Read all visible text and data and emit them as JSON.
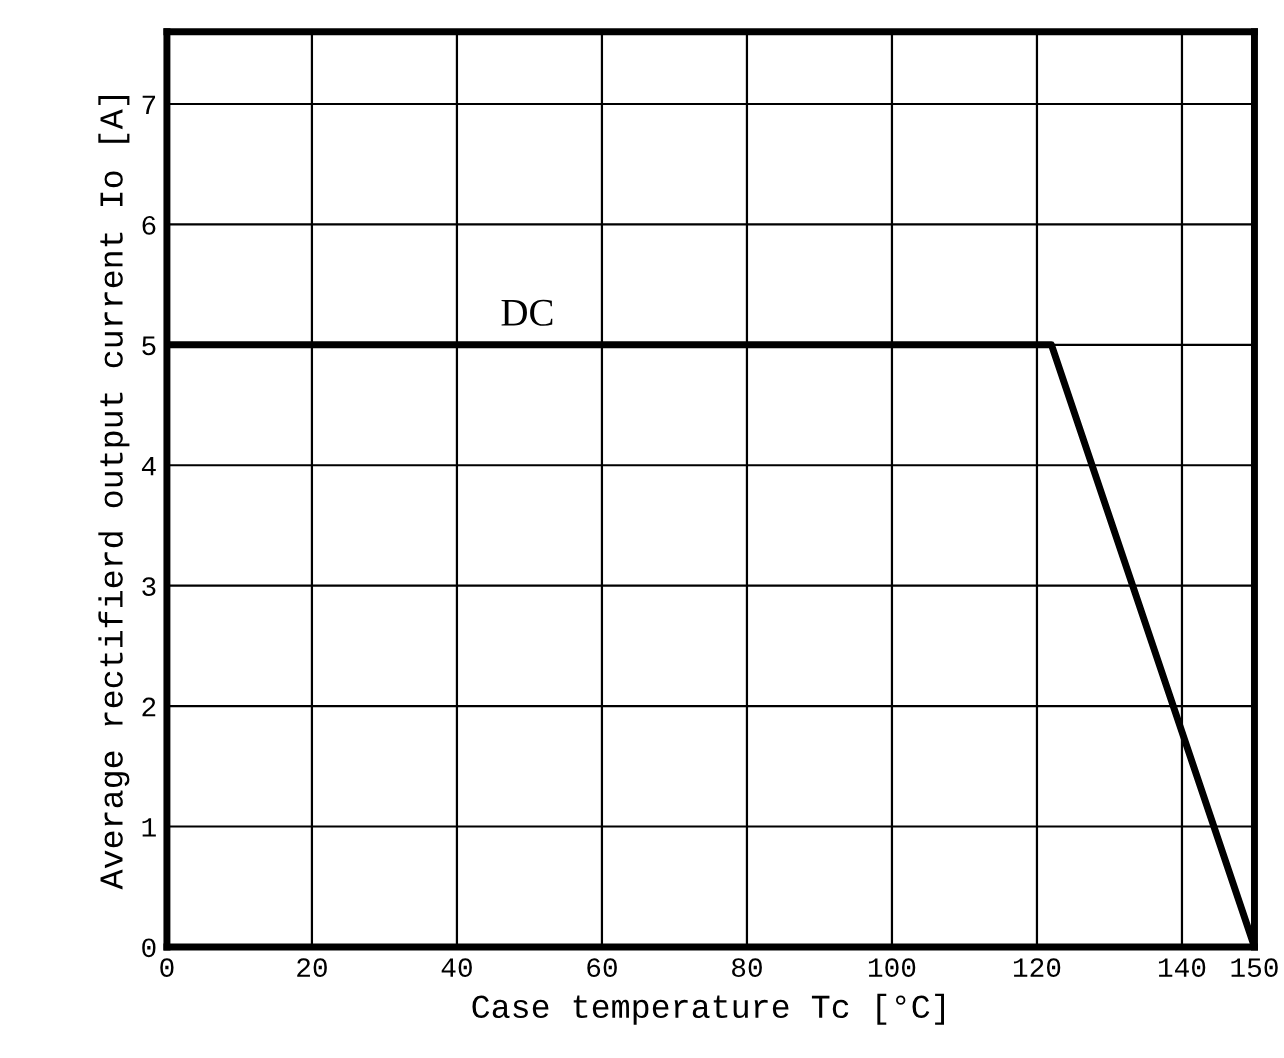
{
  "chart_data": {
    "type": "line",
    "xlabel": "Case temperature Tc [°C]",
    "ylabel": "Average rectifierd output current Io [A]",
    "x": [
      0,
      122,
      150
    ],
    "series": [
      {
        "color": "#000000",
        "values": [
          5,
          5,
          0
        ]
      }
    ],
    "annotations": [
      {
        "text": "DC",
        "x": 46,
        "y": 5
      }
    ],
    "xlim": [
      0,
      150
    ],
    "xticks": [
      0,
      20,
      40,
      60,
      80,
      100,
      120,
      140,
      150
    ],
    "ylim": [
      0,
      7.6
    ],
    "yticks": [
      0,
      1,
      2,
      3,
      4,
      5,
      6,
      7
    ],
    "grid": true,
    "legend": false,
    "marker": "none",
    "line_style": "solid"
  }
}
